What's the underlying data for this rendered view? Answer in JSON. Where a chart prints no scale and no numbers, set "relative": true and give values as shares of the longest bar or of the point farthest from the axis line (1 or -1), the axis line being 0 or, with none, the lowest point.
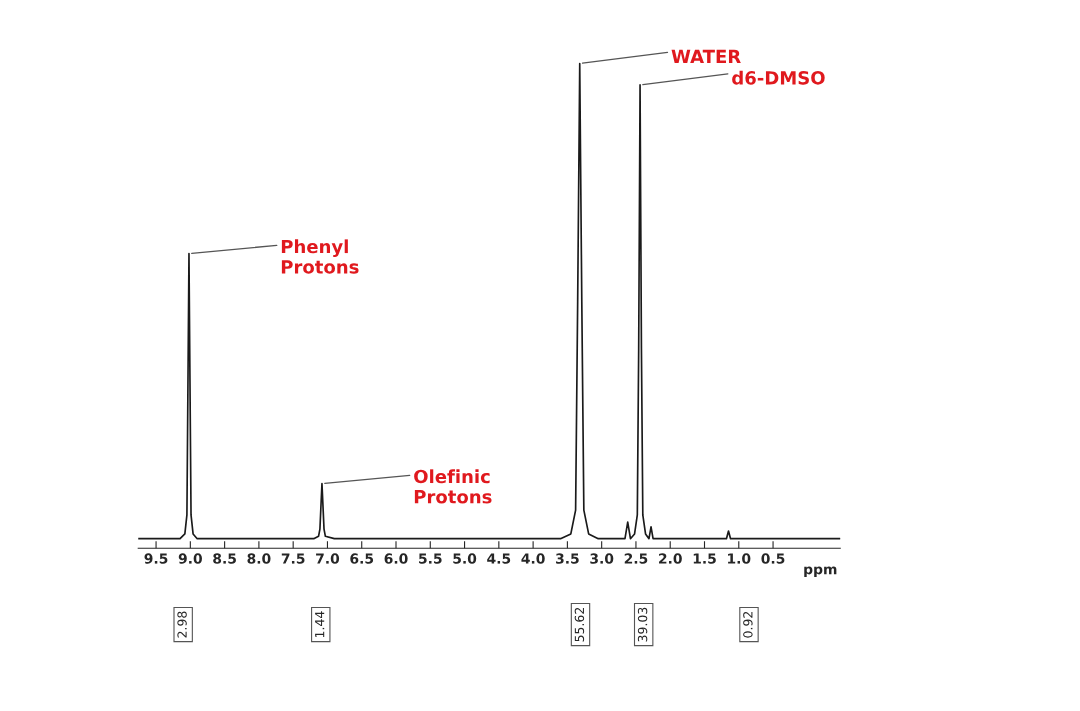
{
  "chart_data": {
    "type": "line",
    "relative": true,
    "xlabel": "ppm",
    "x": [
      9.76,
      9.15,
      9.08,
      9.05,
      9.02,
      8.99,
      8.96,
      8.9,
      7.2,
      7.13,
      7.11,
      7.08,
      7.05,
      7.03,
      6.9,
      3.6,
      3.45,
      3.38,
      3.35,
      3.32,
      3.29,
      3.26,
      3.19,
      3.05,
      2.66,
      2.62,
      2.58,
      2.52,
      2.48,
      2.46,
      2.44,
      2.42,
      2.4,
      2.36,
      2.31,
      2.28,
      2.25,
      1.25,
      1.18,
      1.15,
      1.12,
      1.05,
      -0.48
    ],
    "values": [
      0,
      0,
      0.01,
      0.05,
      0.6,
      0.05,
      0.01,
      0,
      0,
      0.005,
      0.02,
      0.116,
      0.02,
      0.005,
      0,
      0,
      0.01,
      0.06,
      0.5,
      1.0,
      0.5,
      0.06,
      0.01,
      0,
      0,
      0.035,
      0,
      0.01,
      0.05,
      0.4,
      0.955,
      0.4,
      0.05,
      0.01,
      0,
      0.025,
      0,
      0,
      0,
      0.016,
      0,
      0,
      0
    ],
    "color": "#1a1a1a",
    "xlim": [
      9.76,
      -0.48
    ],
    "xticks": [
      9.5,
      {
        "value": 9,
        "label": "9.0"
      },
      8.5,
      {
        "value": 8,
        "label": "8.0"
      },
      7.5,
      {
        "value": 7,
        "label": "7.0"
      },
      6.5,
      {
        "value": 6,
        "label": "6.0"
      },
      5.5,
      {
        "value": 5,
        "label": "5.0"
      },
      4.5,
      {
        "value": 4,
        "label": "4.0"
      },
      3.5,
      {
        "value": 3,
        "label": "3.0"
      },
      2.5,
      {
        "value": 2,
        "label": "2.0"
      },
      1.5,
      {
        "value": 1,
        "label": "1.0"
      },
      0.5
    ],
    "grid": false,
    "annotations": [
      {
        "text": "Phenyl\nProtons",
        "x": 9.02,
        "y": 0.6
      },
      {
        "text": "Olefinic\nProtons",
        "x": 7.08,
        "y": 0.116
      },
      {
        "text": "WATER",
        "x": 3.32,
        "y": 1.0
      },
      {
        "text": "d6-DMSO",
        "x": 2.44,
        "y": 0.955
      },
      "2.98",
      "1.44",
      "55.62",
      "39.03",
      "0.92"
    ]
  }
}
